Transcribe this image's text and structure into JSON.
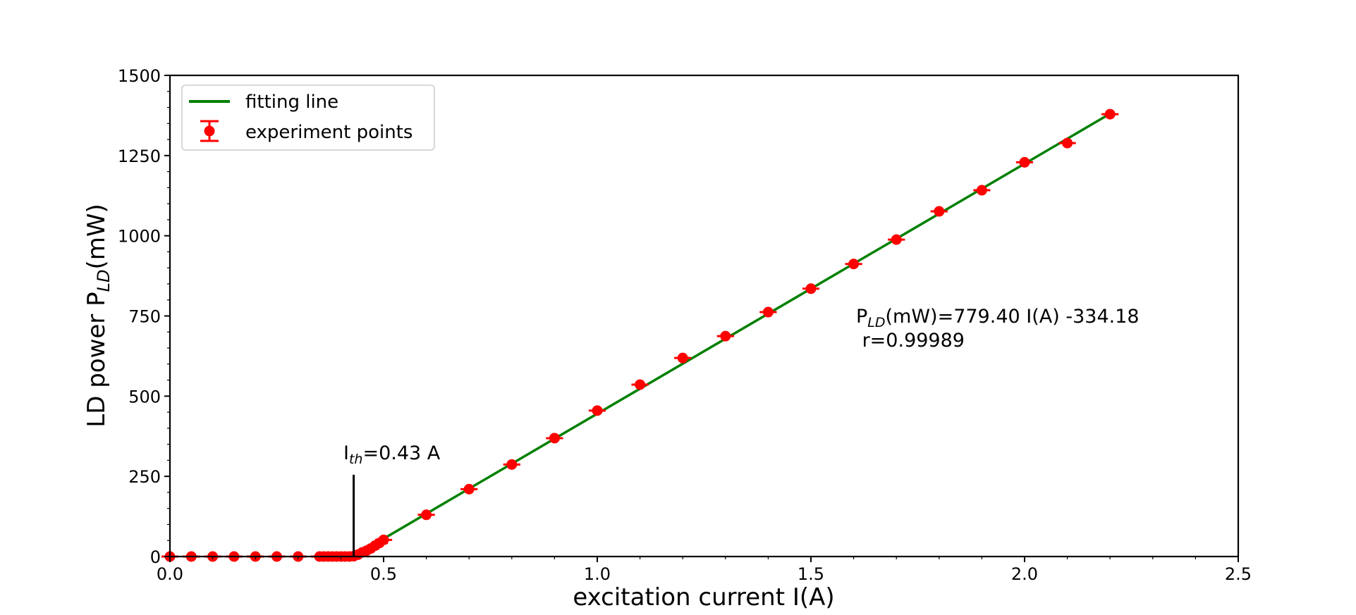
{
  "chart_data": {
    "type": "scatter",
    "xlabel": "excitation current I(A)",
    "ylabel": {
      "main": "LD power P",
      "sub": "LD",
      "unit": "(mW)"
    },
    "xlim": [
      0.0,
      2.5
    ],
    "ylim": [
      0,
      1500
    ],
    "x_ticks": [
      "0.0",
      "0.5",
      "1.0",
      "1.5",
      "2.0",
      "2.5"
    ],
    "y_ticks": [
      "0",
      "250",
      "500",
      "750",
      "1000",
      "1250",
      "1500"
    ],
    "x_tick_values": [
      0.0,
      0.5,
      1.0,
      1.5,
      2.0,
      2.5
    ],
    "y_tick_values": [
      0,
      250,
      500,
      750,
      1000,
      1250,
      1500
    ],
    "grid": false,
    "legend_position": "top-left",
    "series": [
      {
        "name": "fitting line",
        "kind": "line",
        "color": "#008000",
        "x": [
          0.4287,
          2.2
        ],
        "y": [
          0.0,
          1380.5
        ]
      },
      {
        "name": "experiment points",
        "kind": "errorbar",
        "color": "#ff0000",
        "x": [
          0.0,
          0.05,
          0.1,
          0.15,
          0.2,
          0.25,
          0.3,
          0.35,
          0.36,
          0.37,
          0.38,
          0.39,
          0.4,
          0.41,
          0.42,
          0.43,
          0.44,
          0.45,
          0.46,
          0.47,
          0.48,
          0.49,
          0.5,
          0.6,
          0.7,
          0.8,
          0.9,
          1.0,
          1.1,
          1.2,
          1.3,
          1.4,
          1.5,
          1.6,
          1.7,
          1.8,
          1.9,
          2.0,
          2.1,
          2.2
        ],
        "y": [
          0,
          0,
          0,
          0,
          0,
          0,
          0,
          0,
          0,
          0,
          0,
          0,
          0,
          0,
          0,
          1,
          6,
          13,
          18,
          25,
          34,
          42,
          52,
          130,
          210,
          287,
          369,
          455,
          536,
          619,
          687,
          762,
          835,
          912,
          988,
          1076,
          1142,
          1229,
          1289,
          1379
        ],
        "xerr": 0.02
      }
    ],
    "annotations": {
      "threshold": {
        "main": "I",
        "sub": "th",
        "rest": "=0.43 A",
        "x": 0.43,
        "y_top": 255
      },
      "equation": {
        "main": "P",
        "sub": "LD",
        "rest": "(mW)=779.40 I(A) -334.18",
        "line2": " r=0.99989"
      }
    }
  }
}
